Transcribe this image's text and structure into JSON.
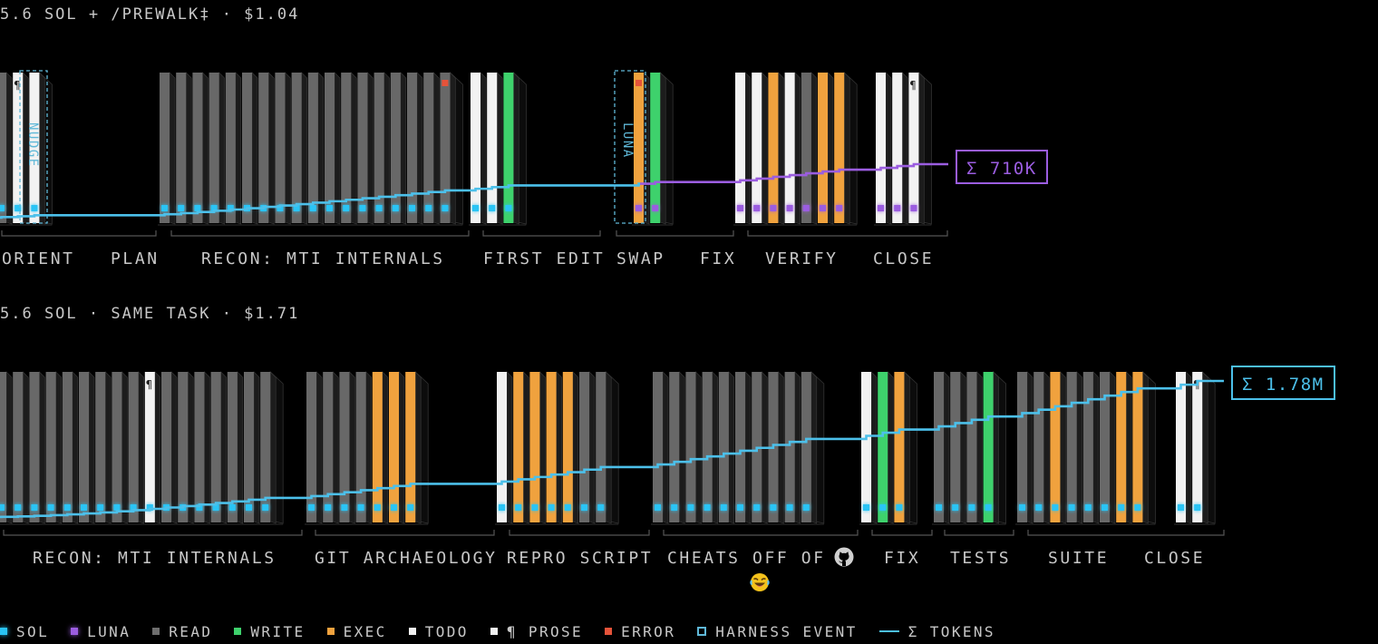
{
  "colors": {
    "read": "#6e6e6e",
    "write": "#3ed16c",
    "exec": "#f0a23e",
    "todo": "#f2f2f2",
    "prose": "#f2f2f2",
    "error": "#e5533a",
    "sol": "#29c4f5",
    "luna": "#9b5de0",
    "harness": "#5fb8d8",
    "tokens": "#4cc0ea"
  },
  "legend": [
    {
      "key": "sol",
      "label": "SOL",
      "style": "dot"
    },
    {
      "key": "luna",
      "label": "LUNA",
      "style": "dot"
    },
    {
      "key": "read",
      "label": "READ",
      "style": "square"
    },
    {
      "key": "write",
      "label": "WRITE",
      "style": "square"
    },
    {
      "key": "exec",
      "label": "EXEC",
      "style": "square"
    },
    {
      "key": "todo",
      "label": "TODO",
      "style": "square"
    },
    {
      "key": "prose",
      "label": "¶ PROSE",
      "style": "square"
    },
    {
      "key": "error",
      "label": "ERROR",
      "style": "square"
    },
    {
      "key": "harness",
      "label": "HARNESS EVENT",
      "style": "hollow"
    },
    {
      "key": "tokens",
      "label": "Σ TOKENS",
      "style": "line"
    }
  ],
  "runs": [
    {
      "title": "5.6 SOL + /PREWALK‡ · $1.04",
      "total": "Σ 710K",
      "total_color": "luna",
      "phases": [
        "ORIENT",
        "PLAN",
        "RECON: MTI INTERNALS",
        "FIRST EDIT",
        "SWAP",
        "FIX",
        "VERIFY",
        "CLOSE"
      ],
      "harness_events": [
        "NUDGE",
        "LUNA"
      ]
    },
    {
      "title": "5.6 SOL · SAME TASK · $1.71",
      "total": "Σ 1.78M",
      "total_color": "tokens",
      "phases": [
        "RECON: MTI INTERNALS",
        "GIT ARCHAEOLOGY",
        "REPRO SCRIPT",
        "CHEATS OFF OF",
        "FIX",
        "TESTS",
        "SUITE",
        "CLOSE"
      ],
      "phase_note_icons": [
        "github-icon",
        "laughing-emoji-icon"
      ]
    }
  ],
  "chart_data": [
    {
      "type": "bar",
      "title": "5.6 SOL + /PREWALK‡ · $1.04",
      "legend_placement": "bottom",
      "grid": false,
      "total_tokens": "710K",
      "phases": [
        {
          "name": "ORIENT",
          "calls": [
            {
              "kind": "read",
              "agent": "sol"
            },
            {
              "kind": "prose",
              "agent": "sol",
              "mark": "¶"
            },
            {
              "kind": "todo",
              "agent": "sol"
            }
          ]
        },
        {
          "name": "PLAN",
          "calls": []
        },
        {
          "name": "RECON: MTI INTERNALS",
          "calls": [
            {
              "kind": "read",
              "agent": "sol"
            },
            {
              "kind": "read",
              "agent": "sol"
            },
            {
              "kind": "read",
              "agent": "sol"
            },
            {
              "kind": "read",
              "agent": "sol"
            },
            {
              "kind": "read",
              "agent": "sol"
            },
            {
              "kind": "read",
              "agent": "sol"
            },
            {
              "kind": "read",
              "agent": "sol"
            },
            {
              "kind": "read",
              "agent": "sol"
            },
            {
              "kind": "read",
              "agent": "sol"
            },
            {
              "kind": "read",
              "agent": "sol"
            },
            {
              "kind": "read",
              "agent": "sol"
            },
            {
              "kind": "read",
              "agent": "sol"
            },
            {
              "kind": "read",
              "agent": "sol"
            },
            {
              "kind": "read",
              "agent": "sol"
            },
            {
              "kind": "read",
              "agent": "sol"
            },
            {
              "kind": "read",
              "agent": "sol"
            },
            {
              "kind": "read",
              "agent": "sol"
            },
            {
              "kind": "read",
              "agent": "sol",
              "error": true
            }
          ]
        },
        {
          "name": "FIRST EDIT",
          "calls": [
            {
              "kind": "todo",
              "agent": "sol"
            },
            {
              "kind": "todo",
              "agent": "sol"
            },
            {
              "kind": "write",
              "agent": "sol"
            }
          ]
        },
        {
          "name": "SWAP",
          "calls": [
            {
              "kind": "exec",
              "agent": "luna",
              "error": true
            },
            {
              "kind": "write",
              "agent": "luna"
            }
          ]
        },
        {
          "name": "FIX",
          "calls": []
        },
        {
          "name": "VERIFY",
          "calls": [
            {
              "kind": "todo",
              "agent": "luna"
            },
            {
              "kind": "todo",
              "agent": "luna"
            },
            {
              "kind": "exec",
              "agent": "luna"
            },
            {
              "kind": "todo",
              "agent": "luna"
            },
            {
              "kind": "read",
              "agent": "luna"
            },
            {
              "kind": "exec",
              "agent": "luna"
            },
            {
              "kind": "exec",
              "agent": "luna"
            }
          ]
        },
        {
          "name": "CLOSE",
          "calls": [
            {
              "kind": "todo",
              "agent": "luna"
            },
            {
              "kind": "todo",
              "agent": "luna"
            },
            {
              "kind": "prose",
              "agent": "luna",
              "mark": "¶"
            }
          ]
        }
      ]
    },
    {
      "type": "bar",
      "title": "5.6 SOL · SAME TASK · $1.71",
      "legend_placement": "bottom",
      "grid": false,
      "total_tokens": "1.78M",
      "phases": [
        {
          "name": "RECON: MTI INTERNALS",
          "calls": [
            {
              "kind": "read",
              "agent": "sol"
            },
            {
              "kind": "read",
              "agent": "sol"
            },
            {
              "kind": "read",
              "agent": "sol"
            },
            {
              "kind": "read",
              "agent": "sol"
            },
            {
              "kind": "read",
              "agent": "sol"
            },
            {
              "kind": "read",
              "agent": "sol"
            },
            {
              "kind": "read",
              "agent": "sol"
            },
            {
              "kind": "read",
              "agent": "sol"
            },
            {
              "kind": "read",
              "agent": "sol"
            },
            {
              "kind": "prose",
              "agent": "sol",
              "mark": "¶"
            },
            {
              "kind": "read",
              "agent": "sol"
            },
            {
              "kind": "read",
              "agent": "sol"
            },
            {
              "kind": "read",
              "agent": "sol"
            },
            {
              "kind": "read",
              "agent": "sol"
            },
            {
              "kind": "read",
              "agent": "sol"
            },
            {
              "kind": "read",
              "agent": "sol"
            },
            {
              "kind": "read",
              "agent": "sol"
            }
          ]
        },
        {
          "name": "GIT ARCHAEOLOGY",
          "calls": [
            {
              "kind": "read",
              "agent": "sol"
            },
            {
              "kind": "read",
              "agent": "sol"
            },
            {
              "kind": "read",
              "agent": "sol"
            },
            {
              "kind": "read",
              "agent": "sol"
            },
            {
              "kind": "exec",
              "agent": "sol"
            },
            {
              "kind": "exec",
              "agent": "sol"
            },
            {
              "kind": "exec",
              "agent": "sol"
            }
          ]
        },
        {
          "name": "REPRO SCRIPT",
          "calls": [
            {
              "kind": "todo",
              "agent": "sol"
            },
            {
              "kind": "exec",
              "agent": "sol"
            },
            {
              "kind": "exec",
              "agent": "sol"
            },
            {
              "kind": "exec",
              "agent": "sol"
            },
            {
              "kind": "exec",
              "agent": "sol"
            },
            {
              "kind": "read",
              "agent": "sol"
            },
            {
              "kind": "read",
              "agent": "sol"
            }
          ]
        },
        {
          "name": "CHEATS OFF OF",
          "calls": [
            {
              "kind": "read",
              "agent": "sol"
            },
            {
              "kind": "read",
              "agent": "sol"
            },
            {
              "kind": "read",
              "agent": "sol"
            },
            {
              "kind": "read",
              "agent": "sol"
            },
            {
              "kind": "read",
              "agent": "sol"
            },
            {
              "kind": "read",
              "agent": "sol"
            },
            {
              "kind": "read",
              "agent": "sol"
            },
            {
              "kind": "read",
              "agent": "sol"
            },
            {
              "kind": "read",
              "agent": "sol"
            },
            {
              "kind": "read",
              "agent": "sol"
            }
          ]
        },
        {
          "name": "FIX",
          "calls": [
            {
              "kind": "todo",
              "agent": "sol"
            },
            {
              "kind": "write",
              "agent": "sol"
            },
            {
              "kind": "exec",
              "agent": "sol"
            }
          ]
        },
        {
          "name": "TESTS",
          "calls": [
            {
              "kind": "read",
              "agent": "sol"
            },
            {
              "kind": "read",
              "agent": "sol"
            },
            {
              "kind": "read",
              "agent": "sol"
            },
            {
              "kind": "write",
              "agent": "sol"
            }
          ]
        },
        {
          "name": "SUITE",
          "calls": [
            {
              "kind": "read",
              "agent": "sol"
            },
            {
              "kind": "read",
              "agent": "sol"
            },
            {
              "kind": "exec",
              "agent": "sol"
            },
            {
              "kind": "read",
              "agent": "sol"
            },
            {
              "kind": "read",
              "agent": "sol"
            },
            {
              "kind": "read",
              "agent": "sol"
            },
            {
              "kind": "exec",
              "agent": "sol"
            },
            {
              "kind": "exec",
              "agent": "sol"
            }
          ]
        },
        {
          "name": "CLOSE",
          "calls": [
            {
              "kind": "todo",
              "agent": "sol"
            },
            {
              "kind": "prose",
              "agent": "sol",
              "mark": "¶"
            }
          ]
        }
      ]
    }
  ]
}
